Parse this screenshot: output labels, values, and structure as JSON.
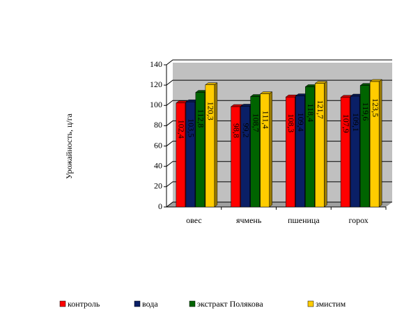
{
  "chart_data": {
    "type": "bar3d",
    "y_label": "Урожайность, ц/га",
    "categories": [
      "овес",
      "ячмень",
      "пшеница",
      "горох"
    ],
    "series": [
      {
        "name": "контроль",
        "color": "#ff0000",
        "values": [
          102.4,
          98.8,
          108.3,
          107.9
        ],
        "value_labels": [
          "102,4",
          "98,8",
          "108,3",
          "107,9"
        ]
      },
      {
        "name": "вода",
        "color": "#0a1f66",
        "values": [
          103.5,
          99.2,
          109.4,
          109.1
        ],
        "value_labels": [
          "103,5",
          "99,2",
          "109,4",
          "109,1"
        ]
      },
      {
        "name": "экстракт Полякова",
        "color": "#006400",
        "values": [
          112.8,
          108.7,
          118.4,
          119.6
        ],
        "value_labels": [
          "112,8",
          "108,7",
          "118,4",
          "119,6"
        ]
      },
      {
        "name": "змистим",
        "color": "#ffcc00",
        "values": [
          120.3,
          111.4,
          121.7,
          123.5
        ],
        "value_labels": [
          "120,3",
          "111,4",
          "121,7",
          "123,5"
        ]
      }
    ],
    "ylim": [
      0,
      140
    ],
    "yticks": [
      0,
      20,
      40,
      60,
      80,
      100,
      120,
      140
    ],
    "grid": true,
    "legend": "bottom"
  }
}
